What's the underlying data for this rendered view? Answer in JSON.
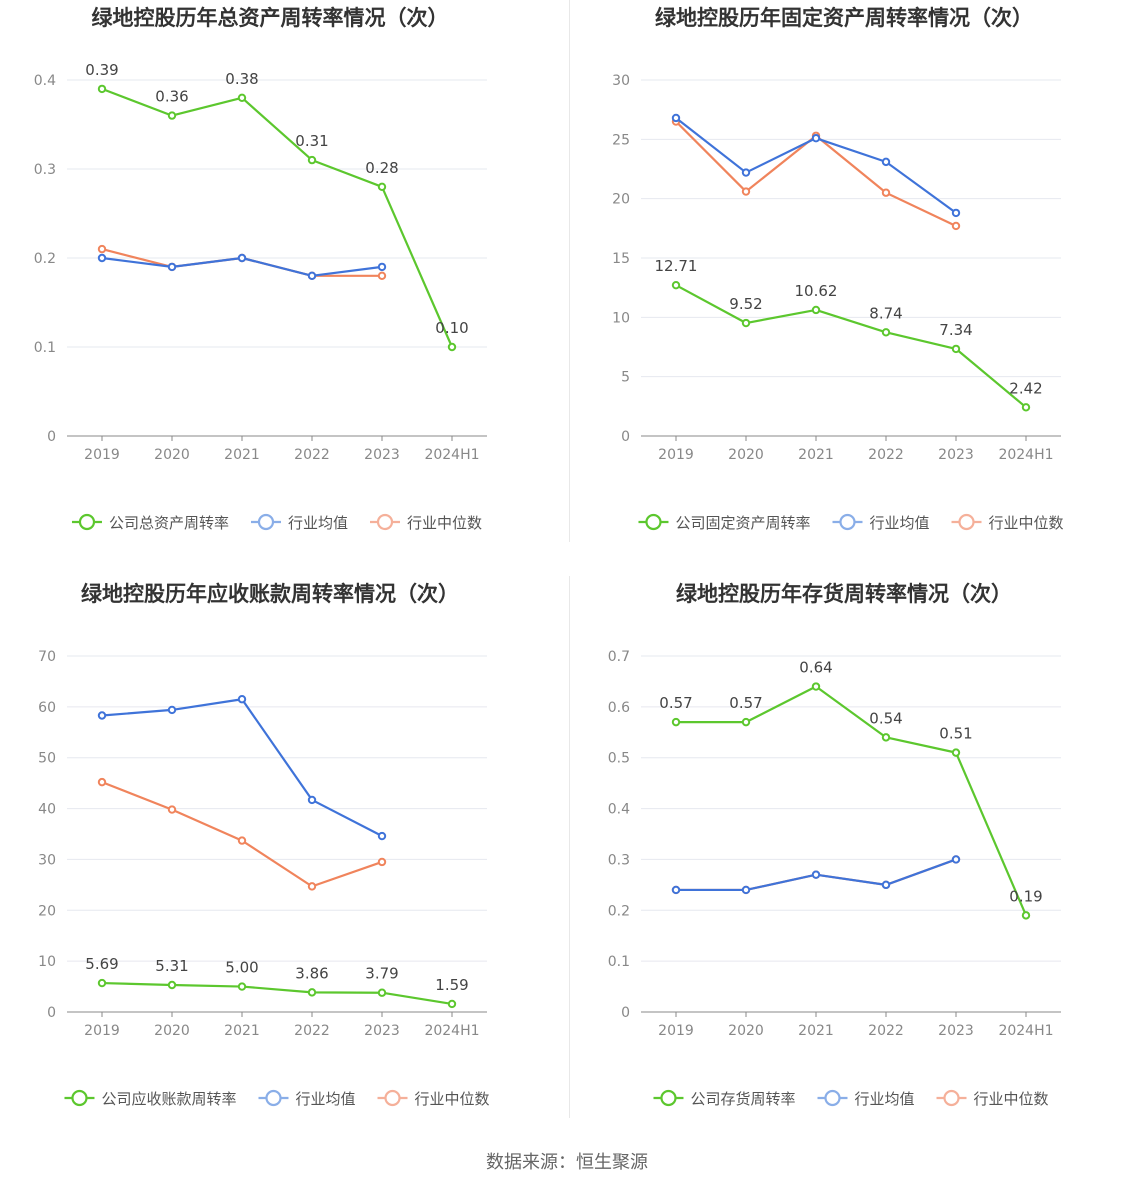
{
  "footer": "数据来源：恒生聚源",
  "colors": {
    "company": "#5cc72e",
    "average": "#3f73d9",
    "median": "#f0845c",
    "average_legend": "#8aaee8",
    "median_legend": "#f5b09a"
  },
  "chart_data": [
    {
      "type": "line",
      "title": "绿地控股历年总资产周转率情况（次）",
      "categories": [
        "2019",
        "2020",
        "2021",
        "2022",
        "2023",
        "2024H1"
      ],
      "ylim": [
        0,
        0.4
      ],
      "yticks": [
        "0",
        "0.1",
        "0.2",
        "0.3",
        "0.4"
      ],
      "ytick_values": [
        0,
        0.1,
        0.2,
        0.3,
        0.4
      ],
      "legend": [
        "公司总资产周转率",
        "行业均值",
        "行业中位数"
      ],
      "series": [
        {
          "name": "公司总资产周转率",
          "values": [
            0.39,
            0.36,
            0.38,
            0.31,
            0.28,
            0.1
          ],
          "labels": [
            "0.39",
            "0.36",
            "0.38",
            "0.31",
            "0.28",
            "0.10"
          ]
        },
        {
          "name": "行业均值",
          "values": [
            0.2,
            0.19,
            0.2,
            0.18,
            0.19,
            null
          ]
        },
        {
          "name": "行业中位数",
          "values": [
            0.21,
            0.19,
            0.2,
            0.18,
            0.18,
            null
          ]
        }
      ]
    },
    {
      "type": "line",
      "title": "绿地控股历年固定资产周转率情况（次）",
      "categories": [
        "2019",
        "2020",
        "2021",
        "2022",
        "2023",
        "2024H1"
      ],
      "ylim": [
        0,
        30
      ],
      "yticks": [
        "0",
        "5",
        "10",
        "15",
        "20",
        "25",
        "30"
      ],
      "ytick_values": [
        0,
        5,
        10,
        15,
        20,
        25,
        30
      ],
      "legend": [
        "公司固定资产周转率",
        "行业均值",
        "行业中位数"
      ],
      "series": [
        {
          "name": "公司固定资产周转率",
          "values": [
            12.71,
            9.52,
            10.62,
            8.74,
            7.34,
            2.42
          ],
          "labels": [
            "12.71",
            "9.52",
            "10.62",
            "8.74",
            "7.34",
            "2.42"
          ]
        },
        {
          "name": "行业均值",
          "values": [
            26.8,
            22.2,
            25.1,
            23.1,
            18.8,
            null
          ]
        },
        {
          "name": "行业中位数",
          "values": [
            26.5,
            20.6,
            25.3,
            20.5,
            17.7,
            null
          ]
        }
      ]
    },
    {
      "type": "line",
      "title": "绿地控股历年应收账款周转率情况（次）",
      "categories": [
        "2019",
        "2020",
        "2021",
        "2022",
        "2023",
        "2024H1"
      ],
      "ylim": [
        0,
        70
      ],
      "yticks": [
        "0",
        "10",
        "20",
        "30",
        "40",
        "50",
        "60",
        "70"
      ],
      "ytick_values": [
        0,
        10,
        20,
        30,
        40,
        50,
        60,
        70
      ],
      "legend": [
        "公司应收账款周转率",
        "行业均值",
        "行业中位数"
      ],
      "series": [
        {
          "name": "公司应收账款周转率",
          "values": [
            5.69,
            5.31,
            5.0,
            3.86,
            3.79,
            1.59
          ],
          "labels": [
            "5.69",
            "5.31",
            "5.00",
            "3.86",
            "3.79",
            "1.59"
          ]
        },
        {
          "name": "行业均值",
          "values": [
            58.3,
            59.4,
            61.5,
            41.7,
            34.6,
            null
          ]
        },
        {
          "name": "行业中位数",
          "values": [
            45.2,
            39.8,
            33.7,
            24.7,
            29.5,
            null
          ]
        }
      ]
    },
    {
      "type": "line",
      "title": "绿地控股历年存货周转率情况（次）",
      "categories": [
        "2019",
        "2020",
        "2021",
        "2022",
        "2023",
        "2024H1"
      ],
      "ylim": [
        0,
        0.7
      ],
      "yticks": [
        "0",
        "0.1",
        "0.2",
        "0.3",
        "0.4",
        "0.5",
        "0.6",
        "0.7"
      ],
      "ytick_values": [
        0,
        0.1,
        0.2,
        0.3,
        0.4,
        0.5,
        0.6,
        0.7
      ],
      "legend": [
        "公司存货周转率",
        "行业均值",
        "行业中位数"
      ],
      "series": [
        {
          "name": "公司存货周转率",
          "values": [
            0.57,
            0.57,
            0.64,
            0.54,
            0.51,
            0.19
          ],
          "labels": [
            "0.57",
            "0.57",
            "0.64",
            "0.54",
            "0.51",
            "0.19"
          ]
        },
        {
          "name": "行业均值",
          "values": [
            0.24,
            0.24,
            0.27,
            0.25,
            0.3,
            null
          ]
        },
        {
          "name": "行业中位数",
          "values": [
            0.24,
            0.24,
            0.27,
            0.25,
            0.3,
            null
          ]
        }
      ]
    }
  ]
}
